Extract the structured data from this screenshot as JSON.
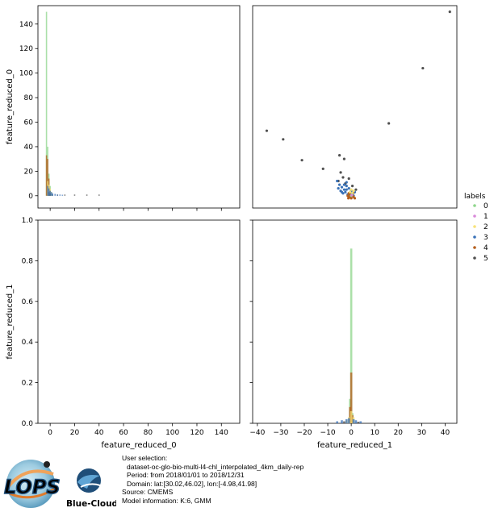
{
  "chart_data": [
    {
      "panel": "top-left",
      "type": "histogram",
      "xlim": [
        -10,
        155
      ],
      "ylim": [
        -10,
        155
      ],
      "ylabel": "feature_reduced_0",
      "yticks": [
        "0",
        "20",
        "40",
        "60",
        "80",
        "100",
        "120",
        "140"
      ],
      "ytick_values": [
        0,
        20,
        40,
        60,
        80,
        100,
        120,
        140
      ],
      "xtick_values": [
        0,
        20,
        40,
        60,
        80,
        100,
        120,
        140
      ],
      "series": [
        {
          "label": "0",
          "bars": [
            [
              -3,
              150
            ],
            [
              -2,
              40
            ],
            [
              -1,
              18
            ],
            [
              0,
              8
            ],
            [
              1,
              3
            ]
          ]
        },
        {
          "label": "4",
          "bars": [
            [
              -3,
              33
            ],
            [
              -2,
              30
            ],
            [
              -1,
              14
            ],
            [
              0,
              4
            ]
          ]
        },
        {
          "label": "2",
          "bars": [
            [
              -2,
              12
            ],
            [
              -1,
              9
            ],
            [
              0,
              6
            ],
            [
              1,
              3
            ]
          ]
        },
        {
          "label": "5",
          "bars": [
            [
              -1,
              3
            ],
            [
              0,
              2
            ],
            [
              2,
              1
            ],
            [
              6,
              1
            ],
            [
              12,
              1
            ],
            [
              20,
              1
            ],
            [
              30,
              1
            ],
            [
              40,
              1
            ]
          ]
        },
        {
          "label": "3",
          "bars": [
            [
              -2,
              8
            ],
            [
              -1,
              6
            ],
            [
              0,
              4
            ],
            [
              1,
              3
            ],
            [
              2,
              2
            ],
            [
              4,
              1.5
            ],
            [
              6,
              1
            ],
            [
              8,
              1
            ],
            [
              10,
              0.8
            ]
          ]
        }
      ]
    },
    {
      "panel": "top-right",
      "type": "scatter",
      "xlim": [
        -42,
        45
      ],
      "ylim": [
        -10,
        155
      ],
      "series": [
        {
          "label": "5",
          "points": [
            [
              42,
              150
            ],
            [
              30.5,
              104
            ],
            [
              16,
              59
            ],
            [
              -36,
              53
            ],
            [
              -29,
              46
            ],
            [
              -21,
              29
            ],
            [
              -12,
              22
            ],
            [
              -5,
              33
            ],
            [
              -3,
              30
            ],
            [
              -4.5,
              19
            ],
            [
              -3.5,
              15
            ],
            [
              -5.5,
              12
            ],
            [
              -2.5,
              10
            ],
            [
              -1,
              14
            ],
            [
              0.5,
              8
            ],
            [
              2,
              5
            ]
          ]
        },
        {
          "label": "3",
          "points": [
            [
              -6,
              12
            ],
            [
              -5,
              9
            ],
            [
              -4,
              7
            ],
            [
              -3,
              5
            ],
            [
              -2,
              8
            ],
            [
              -1,
              6
            ],
            [
              0,
              4
            ],
            [
              -4.5,
              4
            ],
            [
              -3.5,
              2
            ],
            [
              -2.5,
              3
            ],
            [
              -1.5,
              1
            ],
            [
              -0.5,
              2
            ],
            [
              0.5,
              1
            ],
            [
              1.5,
              3
            ],
            [
              -5.5,
              6
            ],
            [
              -2,
              11
            ],
            [
              -3,
              9
            ],
            [
              -4,
              3
            ],
            [
              -1,
              0
            ],
            [
              0,
              2
            ],
            [
              1,
              0
            ],
            [
              -2,
              5
            ]
          ]
        },
        {
          "label": "4",
          "points": [
            [
              -1.5,
              0
            ],
            [
              -1,
              -1
            ],
            [
              -0.5,
              1
            ],
            [
              0,
              -2
            ],
            [
              0.5,
              0
            ],
            [
              1,
              -1
            ],
            [
              -1,
              2
            ],
            [
              0,
              1
            ],
            [
              1.5,
              -2
            ],
            [
              -0.5,
              -1
            ],
            [
              0.8,
              2
            ],
            [
              -1.2,
              -2
            ]
          ]
        },
        {
          "label": "2",
          "points": [
            [
              -0.5,
              3
            ],
            [
              0.5,
              2
            ],
            [
              1,
              4
            ],
            [
              0,
              5
            ]
          ]
        },
        {
          "label": "0",
          "points": [
            [
              0,
              0
            ],
            [
              0.3,
              1
            ]
          ]
        },
        {
          "label": "1",
          "points": [
            [
              0.2,
              0.5
            ]
          ]
        }
      ]
    },
    {
      "panel": "bottom-left",
      "type": "empty",
      "xlim": [
        -10,
        155
      ],
      "ylim": [
        0,
        1
      ],
      "xlabel": "feature_reduced_0",
      "ylabel": "feature_reduced_1",
      "xticks": [
        "0",
        "20",
        "40",
        "60",
        "80",
        "100",
        "120",
        "140"
      ],
      "xtick_values": [
        0,
        20,
        40,
        60,
        80,
        100,
        120,
        140
      ],
      "yticks": [
        "0.0",
        "0.2",
        "0.4",
        "0.6",
        "0.8",
        "1.0"
      ],
      "ytick_values": [
        0,
        0.2,
        0.4,
        0.6,
        0.8,
        1.0
      ]
    },
    {
      "panel": "bottom-right",
      "type": "histogram",
      "xlim": [
        -42,
        45
      ],
      "ylim": [
        0,
        1
      ],
      "xlabel": "feature_reduced_1",
      "xticks": [
        "−40",
        "−30",
        "−20",
        "−10",
        "0",
        "10",
        "20",
        "30",
        "40"
      ],
      "xtick_values": [
        -40,
        -30,
        -20,
        -10,
        0,
        10,
        20,
        30,
        40
      ],
      "ytick_values": [
        0,
        0.2,
        0.4,
        0.6,
        0.8,
        1.0
      ],
      "series": [
        {
          "label": "0",
          "bars": [
            [
              0,
              0.86
            ],
            [
              -0.5,
              0.12
            ],
            [
              0.5,
              0.05
            ]
          ]
        },
        {
          "label": "4",
          "bars": [
            [
              0,
              0.25
            ],
            [
              -0.5,
              0.08
            ],
            [
              0.5,
              0.04
            ]
          ]
        },
        {
          "label": "2",
          "bars": [
            [
              -1,
              0.03
            ],
            [
              0,
              0.06
            ],
            [
              1,
              0.03
            ],
            [
              -2,
              0.015
            ]
          ]
        },
        {
          "label": "3",
          "bars": [
            [
              -6,
              0.01
            ],
            [
              -4,
              0.015
            ],
            [
              -2,
              0.02
            ],
            [
              -1,
              0.025
            ],
            [
              1,
              0.02
            ],
            [
              2,
              0.015
            ],
            [
              4,
              0.01
            ]
          ]
        },
        {
          "label": "5",
          "bars": [
            [
              -3,
              0.01
            ],
            [
              3,
              0.008
            ]
          ]
        }
      ]
    }
  ],
  "legend": {
    "title": "labels",
    "entries": [
      {
        "label": "0",
        "color": "#8fd68c"
      },
      {
        "label": "1",
        "color": "#d98ad9"
      },
      {
        "label": "2",
        "color": "#f7e27a"
      },
      {
        "label": "3",
        "color": "#3a72b8"
      },
      {
        "label": "4",
        "color": "#b55e1c"
      },
      {
        "label": "5",
        "color": "#505050"
      }
    ]
  },
  "footer": {
    "line1": "User selection:",
    "line2": "dataset-oc-glo-bio-multi-l4-chl_interpolated_4km_daily-rep",
    "line3": "Period: from 2018/01/01 to 2018/12/31",
    "line4": "Domain: lat:[30.02,46.02], lon:[-4.98,41.98]",
    "line5": "Source: CMEMS",
    "line6": "Model information: K:6, GMM",
    "logo_left": "LOPS",
    "logo_right": "Blue-Cloud"
  }
}
